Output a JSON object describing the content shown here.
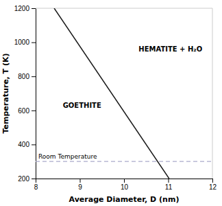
{
  "chart_data": {
    "type": "line",
    "xlabel": "Average Diameter, D (nm)",
    "ylabel": "Temperature, T (K)",
    "x": [
      8.42,
      11.02
    ],
    "values": [
      1200,
      200
    ],
    "color": "#1a1a1a",
    "xlim": [
      8,
      12
    ],
    "ylim": [
      200,
      1200
    ],
    "xticks": [
      8,
      9,
      10,
      11,
      12
    ],
    "yticks": [
      200,
      400,
      600,
      800,
      1000,
      1200
    ],
    "hlines": [
      {
        "y": 300,
        "label": "Room Temperature",
        "color": "#aaaacc",
        "line_style": "dashed"
      }
    ],
    "annotations": [
      {
        "text": "GOETHITE",
        "x": 9.05,
        "y": 628
      },
      {
        "text": "HEMATITE + H₂O",
        "x": 11.05,
        "y": 960
      }
    ]
  }
}
